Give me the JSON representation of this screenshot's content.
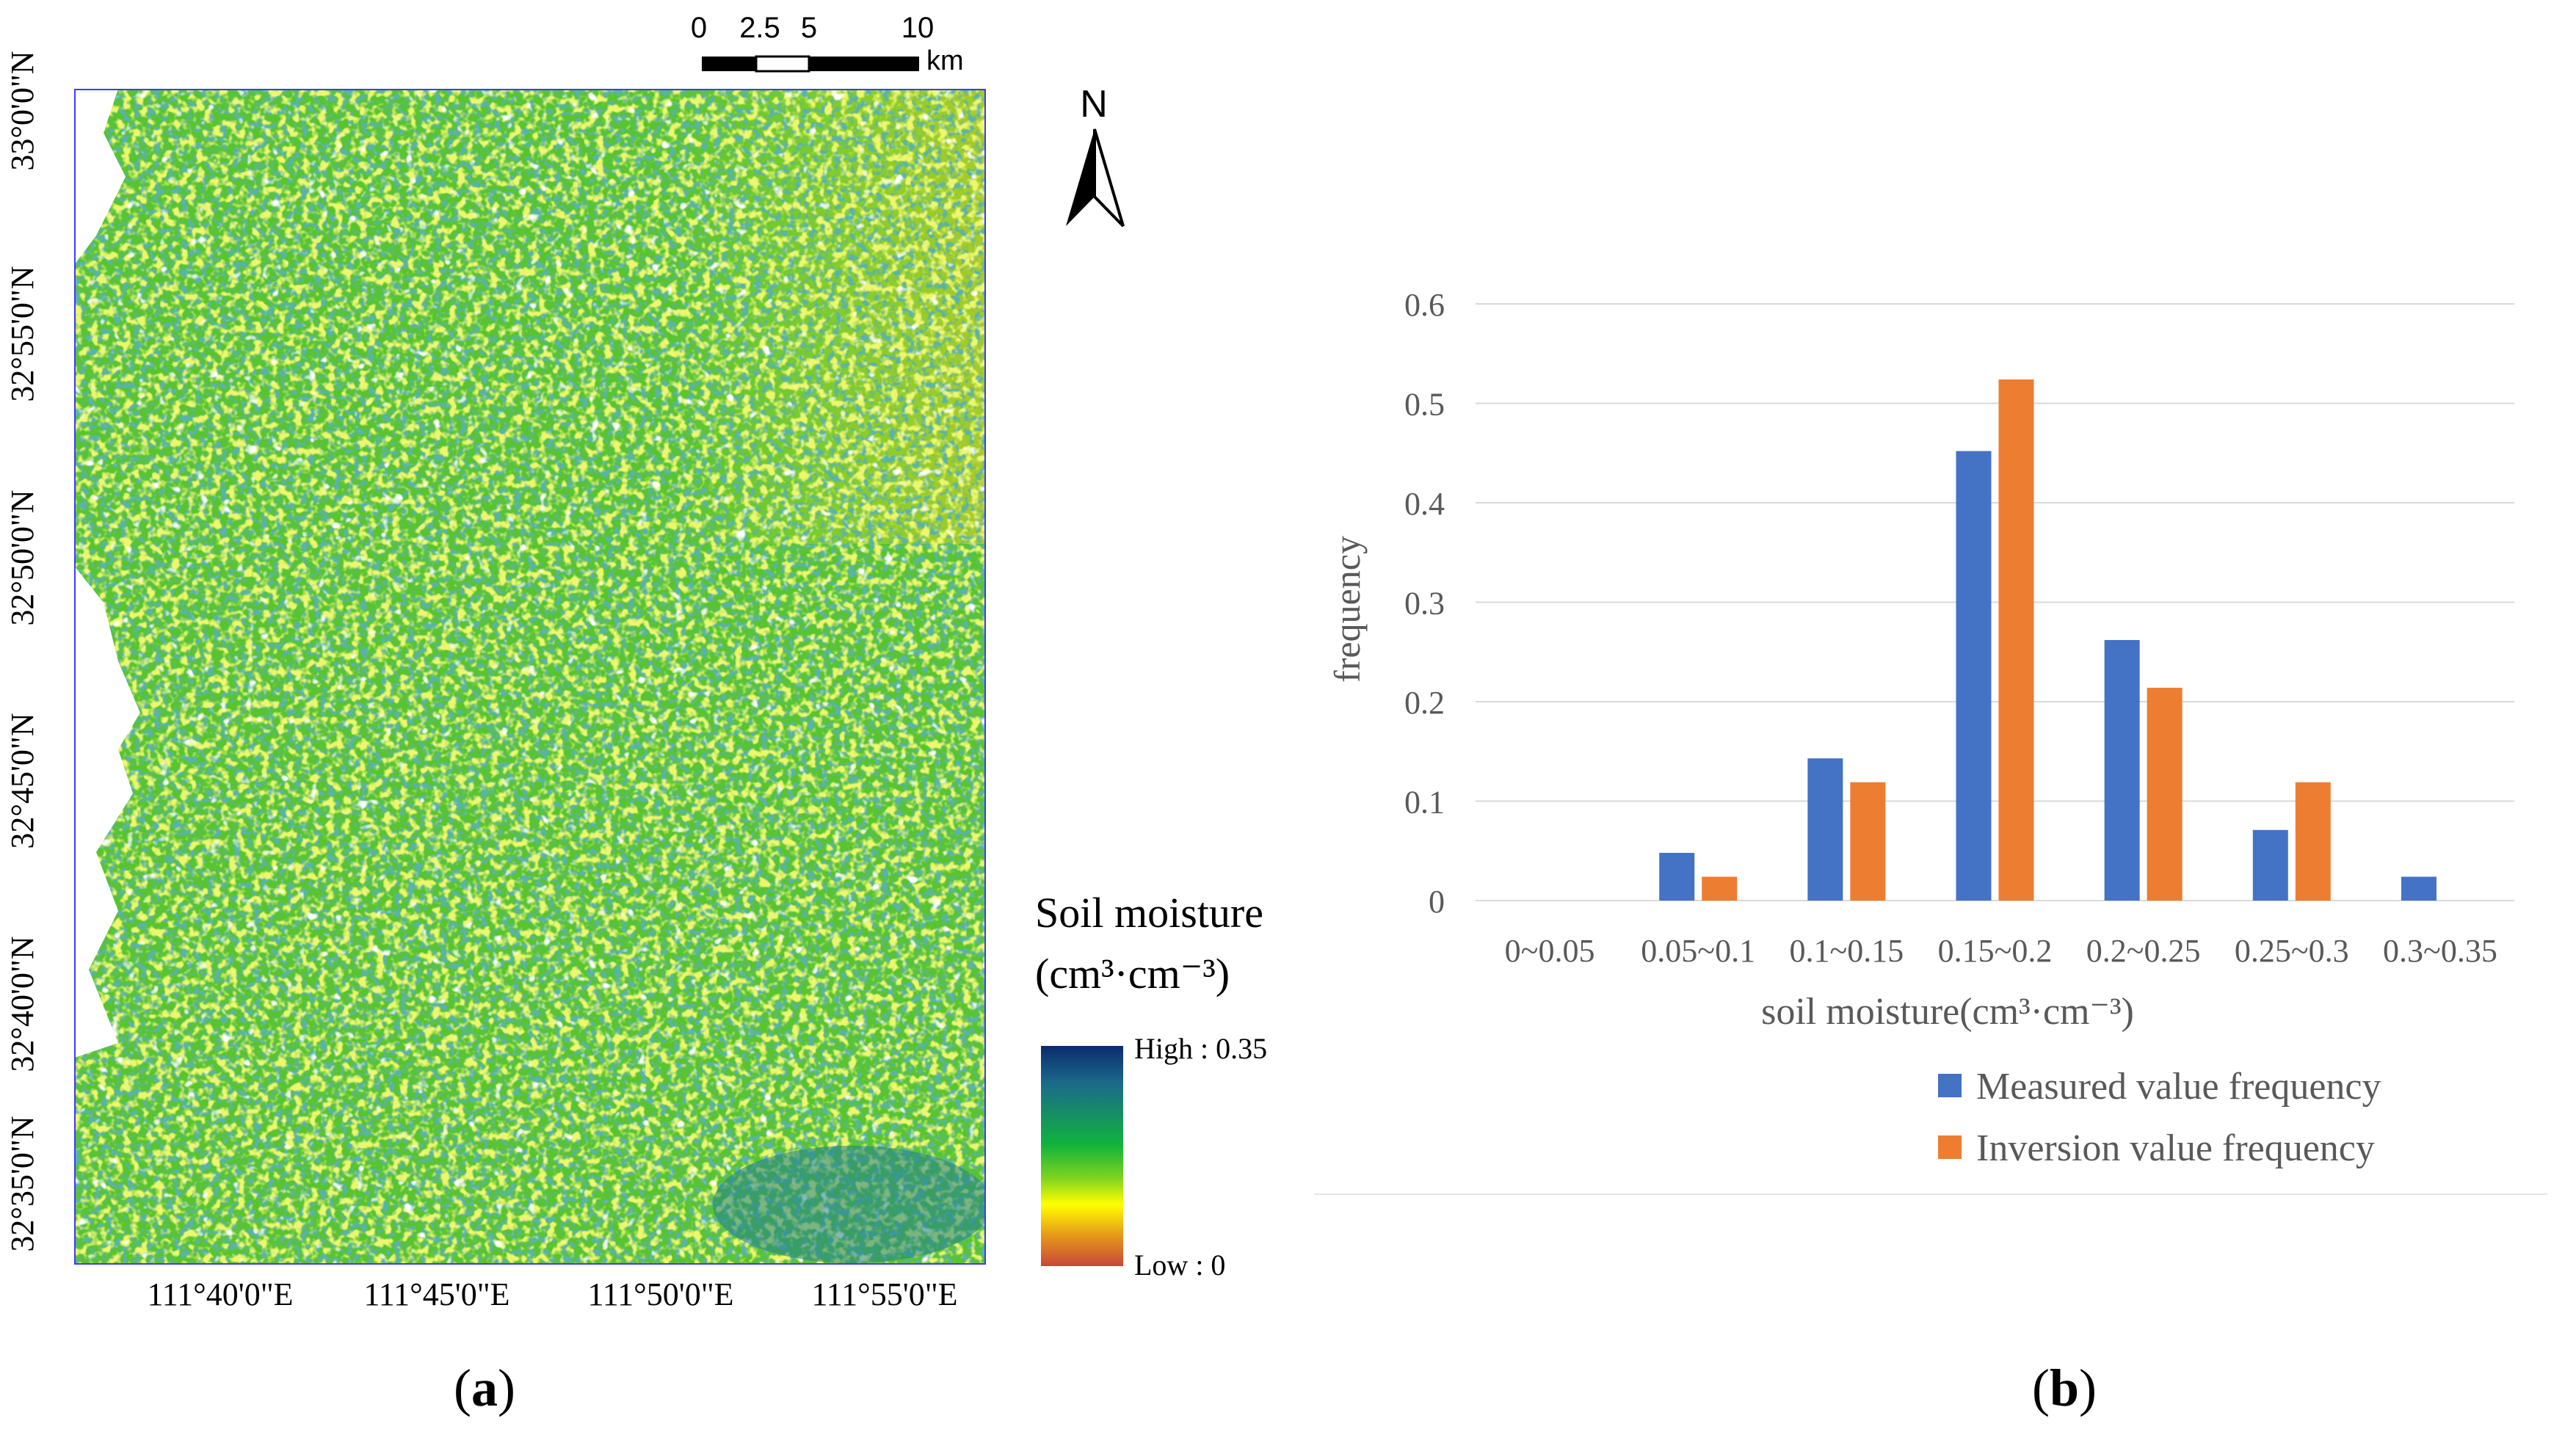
{
  "map": {
    "lat_labels": [
      "33°0'0\"N",
      "32°55'0\"N",
      "32°50'0\"N",
      "32°45'0\"N",
      "32°40'0\"N",
      "32°35'0\"N"
    ],
    "lon_labels": [
      "111°40'0\"E",
      "111°45'0\"E",
      "111°50'0\"E",
      "111°55'0\"E"
    ],
    "scale_ticks": [
      "0",
      "2.5",
      "5",
      "10"
    ],
    "scale_unit": "km",
    "north_label": "N",
    "legend_title_line1": "Soil moisture",
    "legend_title_line2": "(cm³·cm⁻³)",
    "legend_high": "High : 0.35",
    "legend_low": "Low : 0",
    "ramp_colors": [
      "#0b2a6e",
      "#1b6a8a",
      "#12b33c",
      "#7ed320",
      "#ffff00",
      "#e8a018",
      "#c8463a"
    ],
    "panel_label_open": "(",
    "panel_label_letter": "a",
    "panel_label_close": ")"
  },
  "chart_data": {
    "type": "bar",
    "categories": [
      "0~0.05",
      "0.05~0.1",
      "0.1~0.15",
      "0.15~0.2",
      "0.2~0.25",
      "0.25~0.3",
      "0.3~0.35"
    ],
    "series": [
      {
        "name": "Measured value frequency",
        "color": "#4472c4",
        "values": [
          0,
          0.048,
          0.143,
          0.452,
          0.262,
          0.071,
          0.024
        ]
      },
      {
        "name": "Inversion value frequency",
        "color": "#ed7d31",
        "values": [
          0,
          0.024,
          0.119,
          0.524,
          0.214,
          0.119,
          0
        ]
      }
    ],
    "ylim": [
      0,
      0.6
    ],
    "yticks": [
      "0",
      "0.1",
      "0.2",
      "0.3",
      "0.4",
      "0.5",
      "0.6"
    ],
    "xlabel": "soil moisture(cm³·cm⁻³)",
    "ylabel": "frequency",
    "grid": true,
    "legend_position": "bottom-right",
    "panel_label_open": "(",
    "panel_label_letter": "b",
    "panel_label_close": ")"
  }
}
